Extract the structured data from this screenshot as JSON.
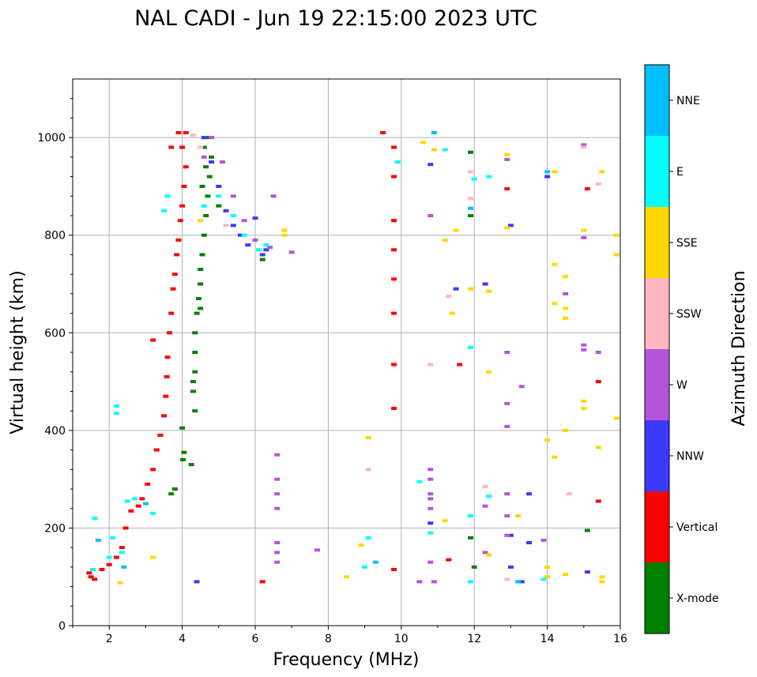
{
  "chart_data": {
    "type": "scatter",
    "title": "NAL CADI - Jun 19 22:15:00 2023 UTC",
    "xlabel": "Frequency (MHz)",
    "ylabel": "Virtual height (km)",
    "xlim": [
      1,
      16
    ],
    "ylim": [
      0,
      1120
    ],
    "xticks": [
      2,
      4,
      6,
      8,
      10,
      12,
      14,
      16
    ],
    "yticks": [
      0,
      200,
      400,
      600,
      800,
      1000
    ],
    "grid": true,
    "colorbar": {
      "label": "Azimuth Direction",
      "categories": [
        "X-mode",
        "Vertical",
        "NNW",
        "W",
        "SSW",
        "SSE",
        "E",
        "NNE"
      ],
      "colors": [
        "#008000",
        "#ff0000",
        "#3a3aff",
        "#b455d8",
        "#ffb6c1",
        "#ffd700",
        "#00ffff",
        "#00bfff"
      ]
    },
    "series": [
      {
        "name": "X-mode",
        "points": [
          [
            4.02,
            340
          ],
          [
            4.05,
            355
          ],
          [
            4.0,
            405
          ],
          [
            4.25,
            330
          ],
          [
            4.3,
            480
          ],
          [
            4.3,
            500
          ],
          [
            4.35,
            440
          ],
          [
            4.35,
            520
          ],
          [
            4.35,
            560
          ],
          [
            4.35,
            600
          ],
          [
            4.5,
            700
          ],
          [
            4.5,
            730
          ],
          [
            4.55,
            760
          ],
          [
            4.6,
            800
          ],
          [
            4.65,
            840
          ],
          [
            4.7,
            880
          ],
          [
            4.75,
            920
          ],
          [
            4.8,
            960
          ],
          [
            4.7,
            1000
          ],
          [
            4.6,
            980
          ],
          [
            3.7,
            270
          ],
          [
            3.8,
            280
          ],
          [
            4.4,
            640
          ],
          [
            4.45,
            670
          ],
          [
            4.5,
            650
          ],
          [
            5.0,
            860
          ],
          [
            4.55,
            900
          ],
          [
            4.65,
            940
          ],
          [
            6.2,
            750
          ],
          [
            11.9,
            180
          ],
          [
            11.9,
            840
          ],
          [
            11.9,
            970
          ],
          [
            12.0,
            120
          ],
          [
            15.1,
            195
          ]
        ]
      },
      {
        "name": "Vertical",
        "points": [
          [
            1.45,
            108
          ],
          [
            1.5,
            100
          ],
          [
            1.6,
            95
          ],
          [
            1.8,
            115
          ],
          [
            2.0,
            125
          ],
          [
            2.2,
            140
          ],
          [
            2.35,
            160
          ],
          [
            2.45,
            200
          ],
          [
            2.6,
            235
          ],
          [
            2.8,
            245
          ],
          [
            2.9,
            260
          ],
          [
            3.05,
            290
          ],
          [
            3.2,
            320
          ],
          [
            3.3,
            360
          ],
          [
            3.4,
            390
          ],
          [
            3.5,
            430
          ],
          [
            3.55,
            470
          ],
          [
            3.58,
            510
          ],
          [
            3.6,
            550
          ],
          [
            3.65,
            600
          ],
          [
            3.7,
            640
          ],
          [
            3.75,
            690
          ],
          [
            3.8,
            720
          ],
          [
            3.85,
            760
          ],
          [
            3.9,
            790
          ],
          [
            3.95,
            830
          ],
          [
            4.0,
            860
          ],
          [
            4.05,
            900
          ],
          [
            4.1,
            940
          ],
          [
            4.0,
            980
          ],
          [
            4.1,
            1010
          ],
          [
            3.9,
            1010
          ],
          [
            3.7,
            980
          ],
          [
            3.2,
            585
          ],
          [
            6.2,
            90
          ],
          [
            9.5,
            1010
          ],
          [
            9.8,
            980
          ],
          [
            9.8,
            920
          ],
          [
            9.8,
            830
          ],
          [
            9.8,
            770
          ],
          [
            9.8,
            710
          ],
          [
            9.8,
            640
          ],
          [
            9.8,
            535
          ],
          [
            9.8,
            445
          ],
          [
            9.8,
            115
          ],
          [
            11.3,
            135
          ],
          [
            11.6,
            535
          ],
          [
            12.9,
            895
          ],
          [
            15.1,
            895
          ],
          [
            15.4,
            500
          ],
          [
            15.4,
            255
          ]
        ]
      },
      {
        "name": "NNW",
        "points": [
          [
            4.4,
            90
          ],
          [
            4.6,
            1000
          ],
          [
            4.8,
            950
          ],
          [
            5.0,
            900
          ],
          [
            5.2,
            850
          ],
          [
            5.4,
            820
          ],
          [
            5.6,
            800
          ],
          [
            5.8,
            780
          ],
          [
            6.2,
            760
          ],
          [
            6.3,
            770
          ],
          [
            6.0,
            835
          ],
          [
            10.8,
            945
          ],
          [
            10.8,
            210
          ],
          [
            11.5,
            690
          ],
          [
            12.3,
            700
          ],
          [
            13.0,
            185
          ],
          [
            13.0,
            120
          ],
          [
            13.0,
            820
          ],
          [
            13.3,
            90
          ],
          [
            13.5,
            170
          ],
          [
            13.5,
            270
          ],
          [
            14.0,
            920
          ],
          [
            15.1,
            110
          ]
        ]
      },
      {
        "name": "W",
        "points": [
          [
            4.6,
            960
          ],
          [
            4.8,
            1000
          ],
          [
            5.1,
            950
          ],
          [
            5.4,
            880
          ],
          [
            5.7,
            830
          ],
          [
            6.0,
            790
          ],
          [
            6.4,
            775
          ],
          [
            6.5,
            880
          ],
          [
            6.6,
            350
          ],
          [
            6.6,
            300
          ],
          [
            6.6,
            270
          ],
          [
            6.6,
            240
          ],
          [
            6.6,
            170
          ],
          [
            6.6,
            150
          ],
          [
            6.6,
            130
          ],
          [
            7.0,
            765
          ],
          [
            7.7,
            155
          ],
          [
            10.8,
            320
          ],
          [
            10.8,
            300
          ],
          [
            10.8,
            270
          ],
          [
            10.8,
            260
          ],
          [
            10.8,
            240
          ],
          [
            10.8,
            130
          ],
          [
            10.5,
            90
          ],
          [
            10.9,
            90
          ],
          [
            10.8,
            840
          ],
          [
            12.3,
            245
          ],
          [
            12.3,
            150
          ],
          [
            12.9,
            560
          ],
          [
            12.9,
            455
          ],
          [
            12.9,
            408
          ],
          [
            12.9,
            270
          ],
          [
            12.9,
            225
          ],
          [
            12.9,
            185
          ],
          [
            12.9,
            955
          ],
          [
            13.3,
            490
          ],
          [
            13.9,
            175
          ],
          [
            14.5,
            680
          ],
          [
            15.0,
            565
          ],
          [
            15.0,
            575
          ],
          [
            15.0,
            795
          ],
          [
            15.0,
            985
          ],
          [
            15.4,
            560
          ]
        ]
      },
      {
        "name": "SSW",
        "points": [
          [
            4.3,
            1005
          ],
          [
            4.5,
            980
          ],
          [
            5.2,
            820
          ],
          [
            9.1,
            320
          ],
          [
            10.8,
            535
          ],
          [
            11.3,
            675
          ],
          [
            11.9,
            875
          ],
          [
            11.9,
            930
          ],
          [
            12.3,
            285
          ],
          [
            12.9,
            95
          ],
          [
            14.6,
            270
          ],
          [
            15.0,
            980
          ],
          [
            15.4,
            905
          ]
        ]
      },
      {
        "name": "SSE",
        "points": [
          [
            2.3,
            88
          ],
          [
            3.2,
            140
          ],
          [
            4.5,
            830
          ],
          [
            6.8,
            800
          ],
          [
            6.8,
            810
          ],
          [
            8.5,
            100
          ],
          [
            8.9,
            165
          ],
          [
            9.1,
            385
          ],
          [
            10.6,
            990
          ],
          [
            10.9,
            975
          ],
          [
            11.2,
            215
          ],
          [
            11.2,
            790
          ],
          [
            11.5,
            810
          ],
          [
            11.4,
            640
          ],
          [
            11.9,
            690
          ],
          [
            12.4,
            520
          ],
          [
            12.4,
            685
          ],
          [
            12.4,
            145
          ],
          [
            12.9,
            965
          ],
          [
            12.9,
            815
          ],
          [
            13.2,
            225
          ],
          [
            14.0,
            100
          ],
          [
            14.0,
            120
          ],
          [
            14.0,
            380
          ],
          [
            14.2,
            740
          ],
          [
            14.2,
            660
          ],
          [
            14.2,
            345
          ],
          [
            14.2,
            930
          ],
          [
            14.5,
            715
          ],
          [
            14.5,
            650
          ],
          [
            14.5,
            630
          ],
          [
            14.5,
            400
          ],
          [
            14.5,
            105
          ],
          [
            15.0,
            810
          ],
          [
            15.0,
            460
          ],
          [
            15.0,
            445
          ],
          [
            15.4,
            365
          ],
          [
            15.5,
            930
          ],
          [
            15.5,
            90
          ],
          [
            15.5,
            100
          ],
          [
            15.9,
            800
          ],
          [
            15.9,
            760
          ],
          [
            15.9,
            425
          ]
        ]
      },
      {
        "name": "E",
        "points": [
          [
            1.55,
            115
          ],
          [
            1.6,
            220
          ],
          [
            2.0,
            140
          ],
          [
            2.1,
            180
          ],
          [
            2.2,
            435
          ],
          [
            2.2,
            450
          ],
          [
            2.35,
            150
          ],
          [
            2.5,
            255
          ],
          [
            2.7,
            260
          ],
          [
            3.2,
            230
          ],
          [
            3.5,
            850
          ],
          [
            3.6,
            880
          ],
          [
            4.6,
            860
          ],
          [
            5.0,
            880
          ],
          [
            5.4,
            840
          ],
          [
            5.7,
            800
          ],
          [
            6.1,
            770
          ],
          [
            6.3,
            780
          ],
          [
            9.0,
            120
          ],
          [
            9.1,
            180
          ],
          [
            9.9,
            950
          ],
          [
            10.5,
            295
          ],
          [
            10.8,
            190
          ],
          [
            11.2,
            975
          ],
          [
            11.9,
            570
          ],
          [
            11.9,
            225
          ],
          [
            11.9,
            90
          ],
          [
            12.0,
            915
          ],
          [
            12.4,
            920
          ],
          [
            12.4,
            265
          ],
          [
            13.9,
            95
          ]
        ]
      },
      {
        "name": "NNE",
        "points": [
          [
            1.7,
            175
          ],
          [
            2.4,
            120
          ],
          [
            3.0,
            250
          ],
          [
            9.3,
            130
          ],
          [
            10.9,
            1010
          ],
          [
            11.9,
            855
          ],
          [
            13.2,
            90
          ],
          [
            14.0,
            930
          ]
        ]
      }
    ]
  }
}
